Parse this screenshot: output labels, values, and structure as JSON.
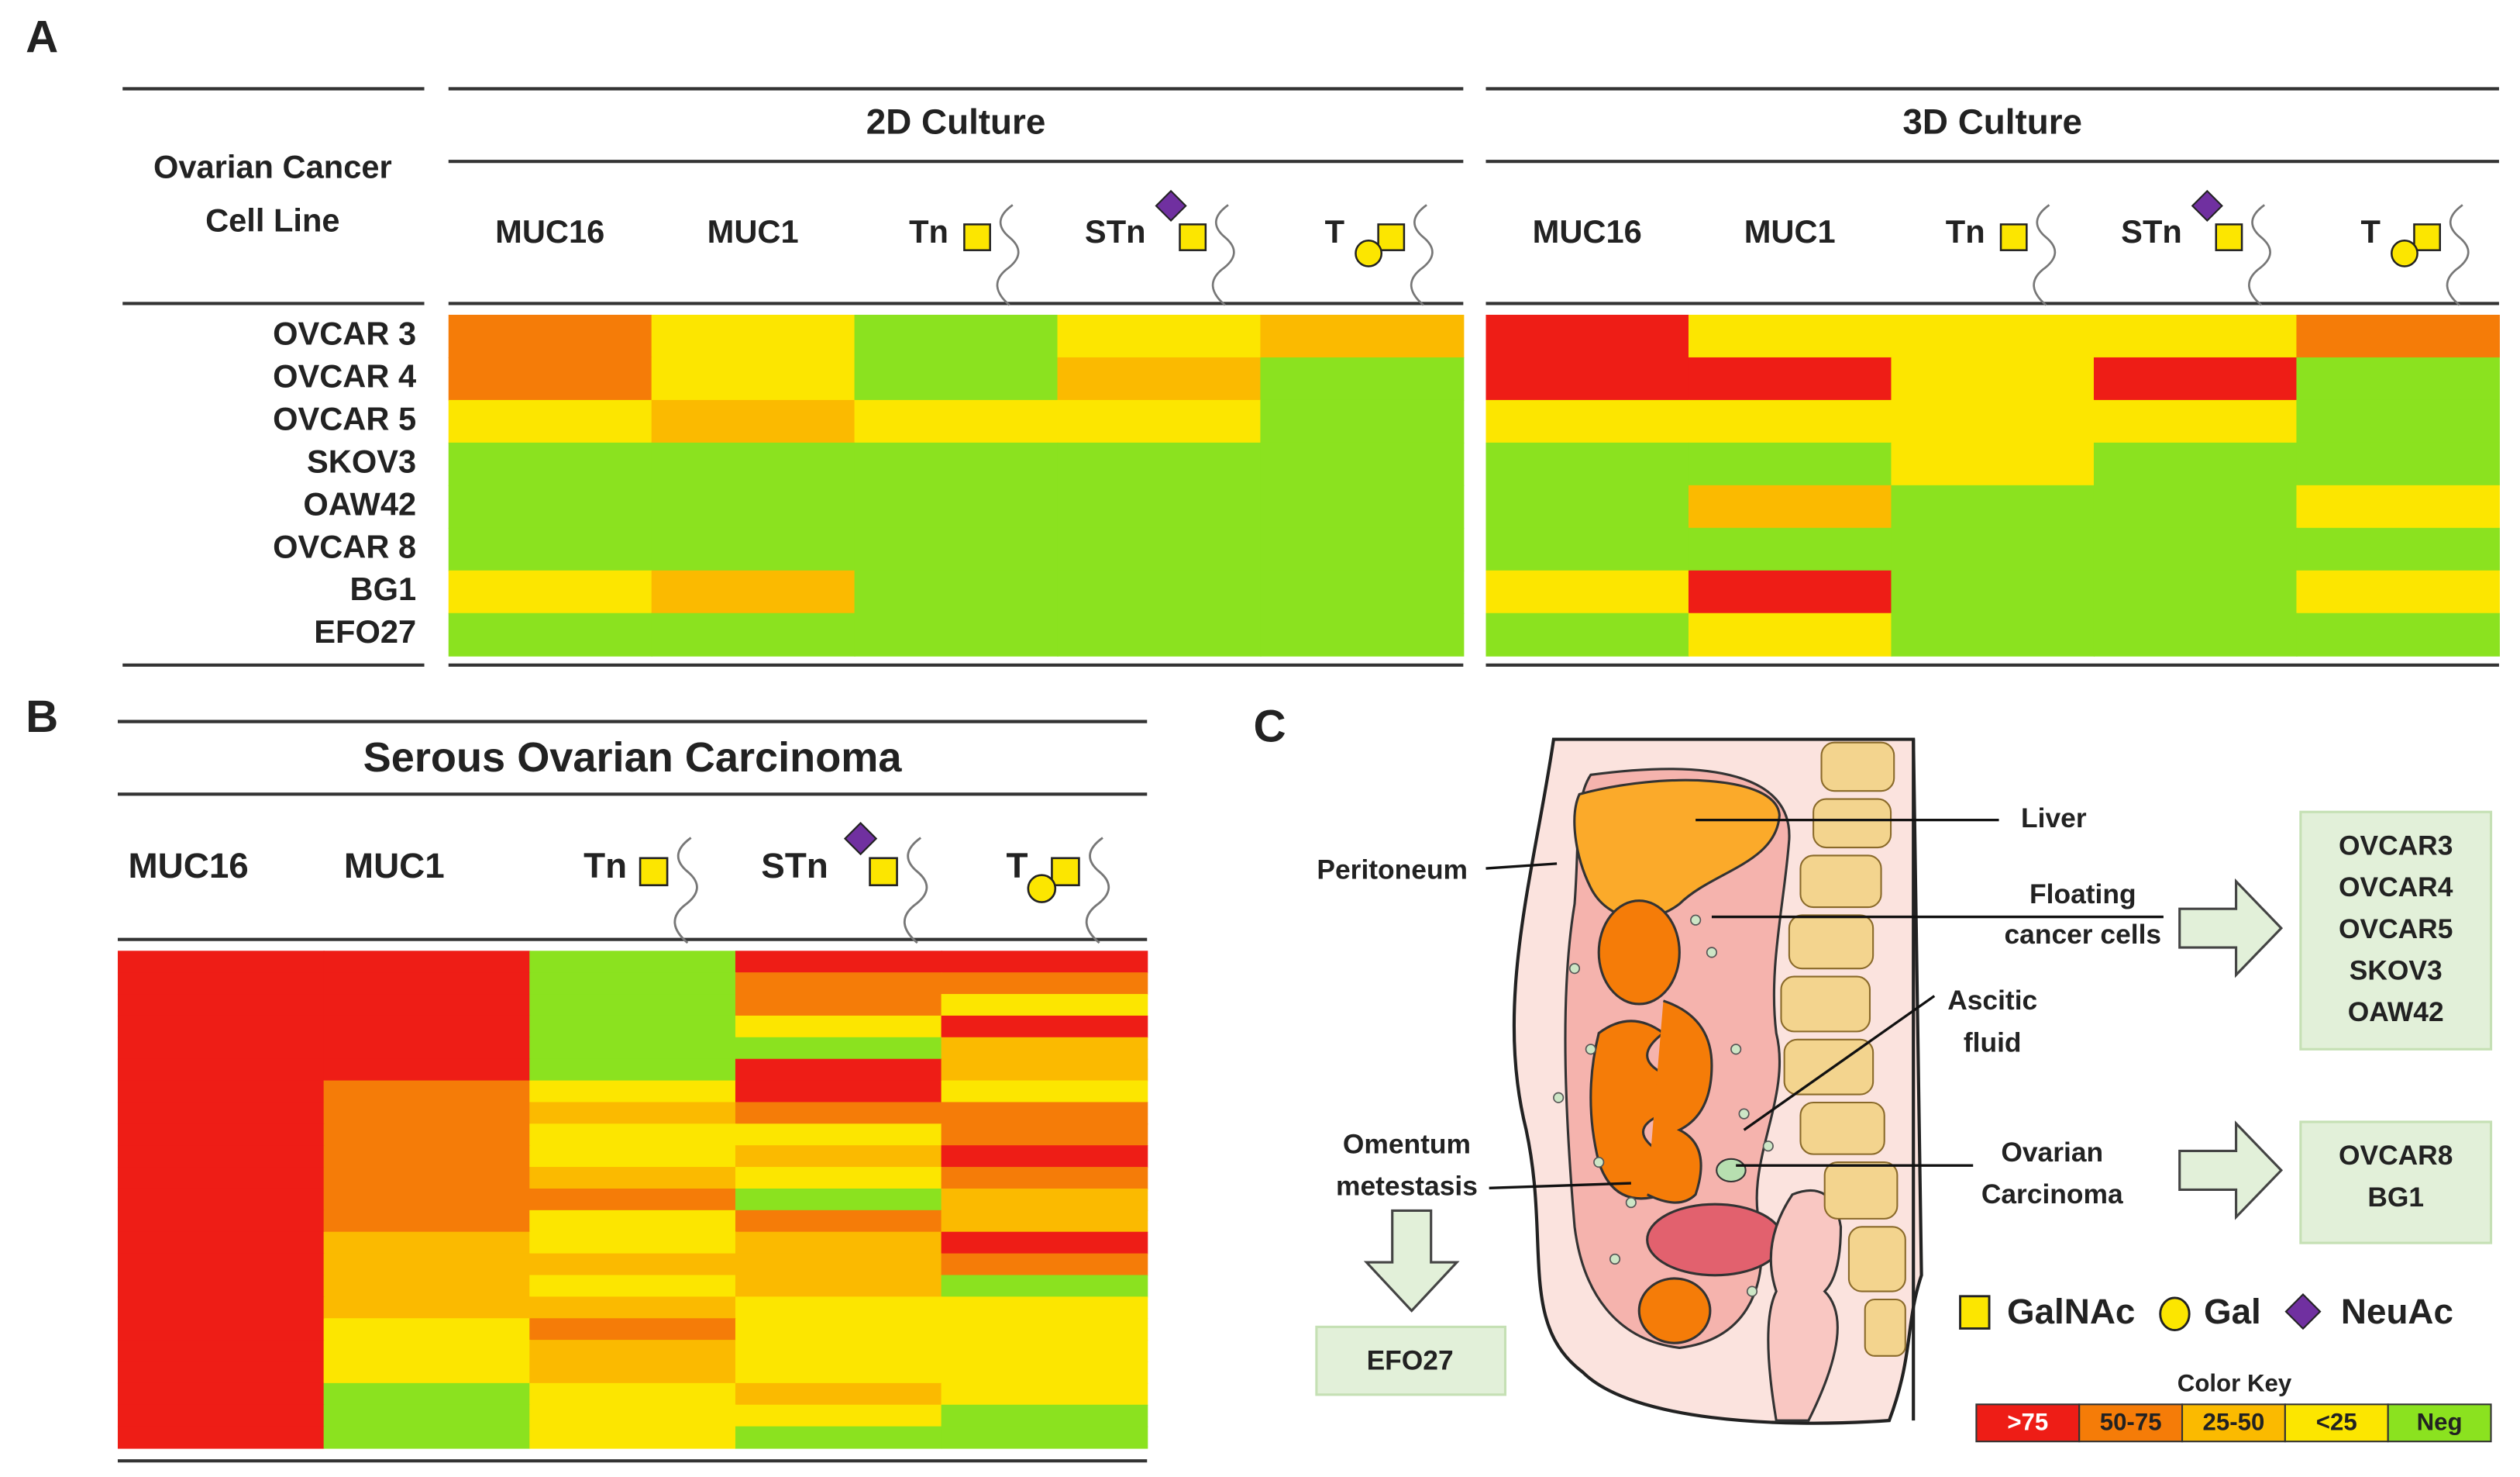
{
  "panel_labels": [
    "A",
    "B",
    "C"
  ],
  "panel_a": {
    "row_header": [
      "Ovarian Cancer",
      "Cell Line"
    ],
    "cell_lines": [
      "OVCAR 3",
      "OVCAR 4",
      "OVCAR 5",
      "SKOV3",
      "OAW42",
      "OVCAR 8",
      "BG1",
      "EFO27"
    ],
    "groups": [
      {
        "title": "2D Culture",
        "columns": [
          "MUC16",
          "MUC1",
          "Tn",
          "STn",
          "T"
        ],
        "cells": [
          [
            "50-75",
            "<25",
            "Neg",
            "<25",
            "25-50"
          ],
          [
            "50-75",
            "<25",
            "Neg",
            "25-50",
            "Neg"
          ],
          [
            "<25",
            "25-50",
            "<25",
            "<25",
            "Neg"
          ],
          [
            "Neg",
            "Neg",
            "Neg",
            "Neg",
            "Neg"
          ],
          [
            "Neg",
            "Neg",
            "Neg",
            "Neg",
            "Neg"
          ],
          [
            "Neg",
            "Neg",
            "Neg",
            "Neg",
            "Neg"
          ],
          [
            "<25",
            "25-50",
            "Neg",
            "Neg",
            "Neg"
          ],
          [
            "Neg",
            "Neg",
            "Neg",
            "Neg",
            "Neg"
          ]
        ]
      },
      {
        "title": "3D Culture",
        "columns": [
          "MUC16",
          "MUC1",
          "Tn",
          "STn",
          "T"
        ],
        "cells": [
          [
            ">75",
            "<25",
            "<25",
            "<25",
            "50-75"
          ],
          [
            ">75",
            ">75",
            "<25",
            ">75",
            "Neg"
          ],
          [
            "<25",
            "<25",
            "<25",
            "<25",
            "Neg"
          ],
          [
            "Neg",
            "Neg",
            "<25",
            "Neg",
            "Neg"
          ],
          [
            "Neg",
            "25-50",
            "Neg",
            "Neg",
            "<25"
          ],
          [
            "Neg",
            "Neg",
            "Neg",
            "Neg",
            "Neg"
          ],
          [
            "<25",
            ">75",
            "Neg",
            "Neg",
            "<25"
          ],
          [
            "Neg",
            "<25",
            "Neg",
            "Neg",
            "Neg"
          ]
        ]
      }
    ]
  },
  "panel_b": {
    "title": "Serous Ovarian Carcinoma",
    "columns": [
      "MUC16",
      "MUC1",
      "Tn",
      "STn",
      "T"
    ],
    "cells": [
      [
        ">75",
        ">75",
        "Neg",
        ">75",
        ">75"
      ],
      [
        ">75",
        ">75",
        "Neg",
        "50-75",
        "50-75"
      ],
      [
        ">75",
        ">75",
        "Neg",
        "50-75",
        "<25"
      ],
      [
        ">75",
        ">75",
        "Neg",
        "<25",
        ">75"
      ],
      [
        ">75",
        ">75",
        "Neg",
        "Neg",
        "25-50"
      ],
      [
        ">75",
        ">75",
        "Neg",
        ">75",
        "25-50"
      ],
      [
        ">75",
        "50-75",
        "<25",
        ">75",
        "<25"
      ],
      [
        ">75",
        "50-75",
        "25-50",
        "50-75",
        "50-75"
      ],
      [
        ">75",
        "50-75",
        "<25",
        "<25",
        "50-75"
      ],
      [
        ">75",
        "50-75",
        "<25",
        "25-50",
        ">75"
      ],
      [
        ">75",
        "50-75",
        "25-50",
        "<25",
        "50-75"
      ],
      [
        ">75",
        "50-75",
        "50-75",
        "Neg",
        "25-50"
      ],
      [
        ">75",
        "50-75",
        "<25",
        "50-75",
        "25-50"
      ],
      [
        ">75",
        "25-50",
        "<25",
        "25-50",
        ">75"
      ],
      [
        ">75",
        "25-50",
        "25-50",
        "25-50",
        "50-75"
      ],
      [
        ">75",
        "25-50",
        "<25",
        "25-50",
        "Neg"
      ],
      [
        ">75",
        "25-50",
        "25-50",
        "<25",
        "<25"
      ],
      [
        ">75",
        "<25",
        "50-75",
        "<25",
        "<25"
      ],
      [
        ">75",
        "<25",
        "25-50",
        "<25",
        "<25"
      ],
      [
        ">75",
        "<25",
        "25-50",
        "<25",
        "<25"
      ],
      [
        ">75",
        "Neg",
        "<25",
        "25-50",
        "<25"
      ],
      [
        ">75",
        "Neg",
        "<25",
        "<25",
        "Neg"
      ],
      [
        ">75",
        "Neg",
        "<25",
        "Neg",
        "Neg"
      ]
    ]
  },
  "panel_c": {
    "liver": "Liver",
    "peritoneum": "Peritoneum",
    "floating": [
      "Floating",
      "cancer cells"
    ],
    "ascitic": [
      "Ascitic",
      "fluid"
    ],
    "omentum": [
      "Omentum",
      "metestasis"
    ],
    "ovarian": [
      "Ovarian",
      "Carcinoma"
    ],
    "box_floating": [
      "OVCAR3",
      "OVCAR4",
      "OVCAR5",
      "SKOV3",
      "OAW42"
    ],
    "box_ovarian": [
      "OVCAR8",
      "BG1"
    ],
    "box_omentum": [
      "EFO27"
    ],
    "glycan_legend": [
      "GalNAc",
      "Gal",
      "NeuAc"
    ],
    "color_key": {
      "title": "Color Key",
      "levels": [
        {
          "label": ">75",
          "color": "#ee1d16"
        },
        {
          "label": "50-75",
          "color": "#f57c08"
        },
        {
          "label": "25-50",
          "color": "#fbba00"
        },
        {
          "label": "<25",
          "color": "#fce600"
        },
        {
          "label": "Neg",
          "color": "#8be21f"
        }
      ]
    }
  }
}
